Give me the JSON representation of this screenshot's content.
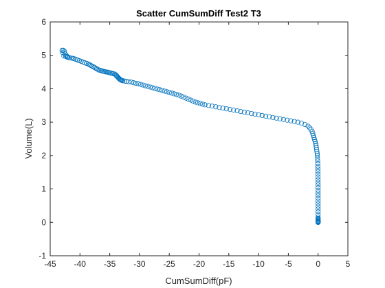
{
  "chart_data": {
    "type": "scatter",
    "title": "Scatter CumSumDiff Test2 T3",
    "xlabel": "CumSumDiff(pF)",
    "ylabel": "Volume(L)",
    "xlim": [
      -45,
      5
    ],
    "ylim": [
      -1,
      6
    ],
    "xticks": [
      "-45",
      "-40",
      "-35",
      "-30",
      "-25",
      "-20",
      "-15",
      "-10",
      "-5",
      "0",
      "5"
    ],
    "yticks": [
      "-1",
      "0",
      "1",
      "2",
      "3",
      "4",
      "5",
      "6"
    ],
    "marker": "open-circle",
    "grid": false,
    "series": [
      {
        "color": "#0072bd",
        "x": [
          -43.0,
          -42.8,
          -42.6,
          -42.9,
          -42.5,
          -42.3,
          -42.7,
          -42.4,
          -42.2,
          -42.0,
          -42.1,
          -41.8,
          -41.5,
          -41.2,
          -41.0,
          -40.7,
          -40.4,
          -40.1,
          -39.8,
          -39.5,
          -39.2,
          -38.9,
          -38.6,
          -38.4,
          -38.2,
          -38.0,
          -37.8,
          -37.6,
          -37.4,
          -37.2,
          -37.0,
          -36.8,
          -36.6,
          -36.4,
          -36.2,
          -36.0,
          -35.8,
          -35.6,
          -35.4,
          -35.2,
          -35.0,
          -34.8,
          -34.6,
          -34.4,
          -34.2,
          -34.0,
          -33.9,
          -33.8,
          -33.7,
          -33.6,
          -33.5,
          -33.4,
          -33.3,
          -33.2,
          -33.1,
          -33.0,
          -32.8,
          -32.5,
          -32.2,
          -31.8,
          -31.4,
          -31.0,
          -30.6,
          -30.2,
          -29.8,
          -29.4,
          -29.0,
          -28.6,
          -28.2,
          -27.8,
          -27.4,
          -27.0,
          -26.6,
          -26.2,
          -25.8,
          -25.4,
          -25.0,
          -24.6,
          -24.2,
          -23.8,
          -23.4,
          -23.0,
          -22.6,
          -22.2,
          -21.8,
          -21.4,
          -21.0,
          -20.6,
          -20.2,
          -19.8,
          -19.4,
          -19.0,
          -18.4,
          -17.8,
          -17.2,
          -16.6,
          -16.0,
          -15.4,
          -14.8,
          -14.2,
          -13.6,
          -13.0,
          -12.4,
          -11.8,
          -11.2,
          -10.6,
          -10.0,
          -9.4,
          -8.8,
          -8.2,
          -7.6,
          -7.0,
          -6.4,
          -5.8,
          -5.2,
          -4.6,
          -4.0,
          -3.4,
          -2.8,
          -2.2,
          -1.7,
          -1.4,
          -1.2,
          -1.0,
          -0.9,
          -0.8,
          -0.7,
          -0.6,
          -0.5,
          -0.4,
          -0.35,
          -0.3,
          -0.25,
          -0.2,
          -0.15,
          -0.12,
          -0.1,
          -0.08,
          -0.06,
          -0.05,
          -0.04,
          -0.03,
          -0.02,
          -0.02,
          -0.01,
          -0.01,
          0.0,
          0.0,
          0.0,
          0.0,
          0.0,
          0.0,
          0.0,
          0.0,
          0.0,
          0.0,
          0.0,
          0.0,
          0.0,
          0.0,
          0.0,
          0.0,
          0.0,
          0.0,
          0.0,
          0.0,
          0.0,
          0.0,
          0.0,
          0.0
        ],
        "y": [
          5.15,
          5.15,
          5.12,
          5.08,
          5.05,
          5.0,
          4.98,
          4.97,
          4.96,
          4.95,
          4.94,
          4.93,
          4.92,
          4.91,
          4.9,
          4.88,
          4.86,
          4.84,
          4.82,
          4.8,
          4.78,
          4.76,
          4.74,
          4.72,
          4.7,
          4.68,
          4.66,
          4.64,
          4.62,
          4.6,
          4.58,
          4.56,
          4.55,
          4.54,
          4.53,
          4.52,
          4.51,
          4.5,
          4.5,
          4.49,
          4.48,
          4.47,
          4.46,
          4.45,
          4.44,
          4.42,
          4.4,
          4.38,
          4.36,
          4.34,
          4.32,
          4.3,
          4.28,
          4.27,
          4.26,
          4.25,
          4.24,
          4.23,
          4.22,
          4.21,
          4.2,
          4.18,
          4.16,
          4.15,
          4.13,
          4.11,
          4.09,
          4.07,
          4.05,
          4.03,
          4.01,
          3.99,
          3.97,
          3.95,
          3.93,
          3.91,
          3.89,
          3.87,
          3.85,
          3.83,
          3.81,
          3.78,
          3.75,
          3.72,
          3.69,
          3.66,
          3.63,
          3.6,
          3.58,
          3.56,
          3.54,
          3.52,
          3.5,
          3.48,
          3.46,
          3.44,
          3.42,
          3.4,
          3.38,
          3.36,
          3.34,
          3.32,
          3.3,
          3.28,
          3.26,
          3.24,
          3.22,
          3.2,
          3.18,
          3.16,
          3.14,
          3.12,
          3.1,
          3.08,
          3.06,
          3.04,
          3.02,
          3.0,
          2.97,
          2.93,
          2.88,
          2.83,
          2.78,
          2.72,
          2.66,
          2.6,
          2.54,
          2.48,
          2.42,
          2.36,
          2.3,
          2.24,
          2.18,
          2.12,
          2.06,
          2.0,
          1.92,
          1.84,
          1.76,
          1.68,
          1.6,
          1.52,
          1.44,
          1.36,
          1.28,
          1.2,
          1.12,
          1.04,
          0.96,
          0.88,
          0.8,
          0.72,
          0.64,
          0.56,
          0.48,
          0.4,
          0.32,
          0.24,
          0.16,
          0.1,
          0.06,
          0.03,
          0.01,
          0.0,
          0.0,
          0.0,
          0.02,
          0.04,
          0.08,
          0.12
        ]
      }
    ]
  }
}
